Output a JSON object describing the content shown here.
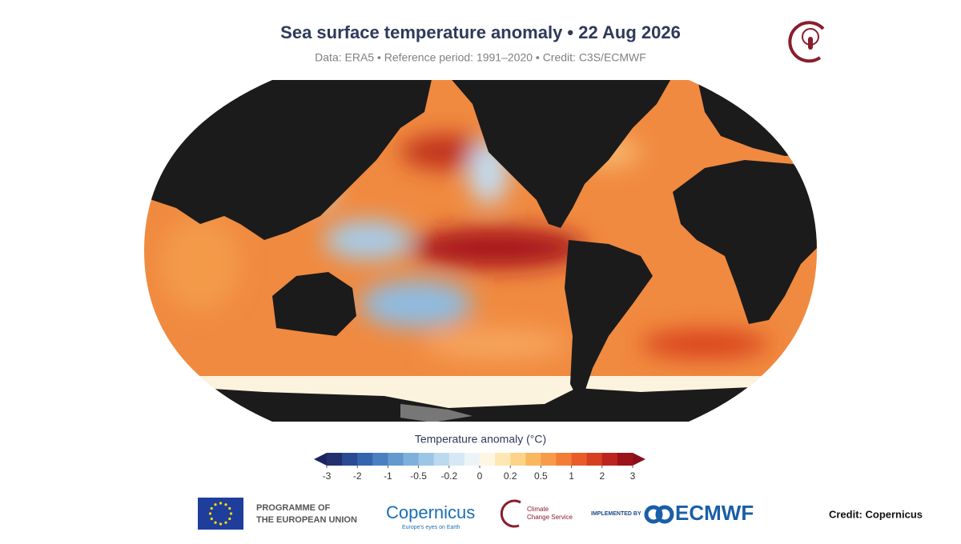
{
  "header": {
    "title": "Sea surface temperature anomaly • 22 Aug 2026",
    "subtitle": "Data: ERA5 • Reference period: 1991–2020 • Credit: C3S/ECMWF"
  },
  "legend": {
    "title": "Temperature anomaly (°C)",
    "ticks": [
      -3,
      -2,
      -1,
      -0.5,
      -0.2,
      0,
      0.2,
      0.5,
      1,
      2,
      3
    ],
    "colors": [
      "#23306e",
      "#2b4a94",
      "#3565ad",
      "#4a80c0",
      "#6399cf",
      "#7fb0dc",
      "#9dc6e6",
      "#bcd9ee",
      "#d6e8f4",
      "#edf4f8",
      "#fdf6e3",
      "#fde8b5",
      "#fcd388",
      "#fbb760",
      "#f89a48",
      "#f37c36",
      "#e95c2a",
      "#d63f22",
      "#bb251e",
      "#9a1419"
    ],
    "low_color": "#1c2460",
    "high_color": "#8a0f18"
  },
  "footer": {
    "eu_line1": "PROGRAMME OF",
    "eu_line2": "THE EUROPEAN UNION",
    "copernicus": "Copernicus",
    "copernicus_tagline": "Europe's eyes on Earth",
    "c3s_line1": "Climate",
    "c3s_line2": "Change Service",
    "implemented_by": "IMPLEMENTED BY",
    "ecmwf": "ECMWF",
    "credit": "Credit: Copernicus"
  }
}
